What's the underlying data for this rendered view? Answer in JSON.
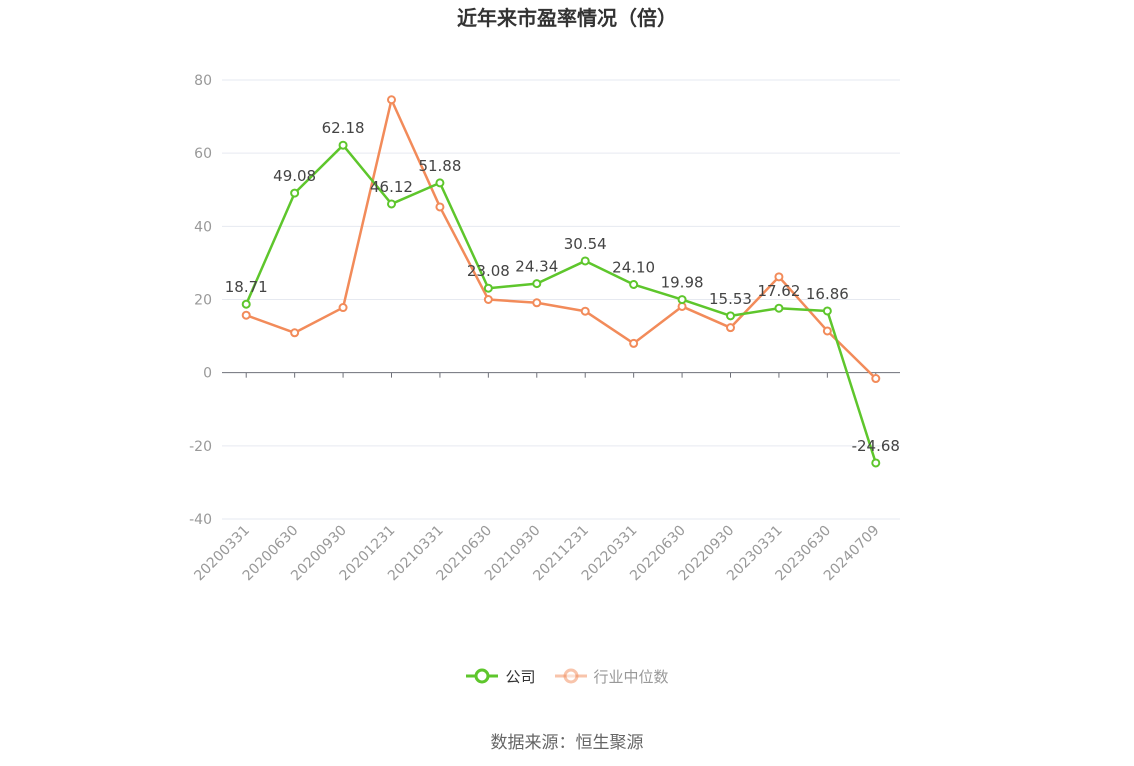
{
  "chart_data": {
    "type": "line",
    "title": "近年来市盈率情况（倍）",
    "categories": [
      "20200331",
      "20200630",
      "20200930",
      "20201231",
      "20210331",
      "20210630",
      "20210930",
      "20211231",
      "20220331",
      "20220630",
      "20220930",
      "20230331",
      "20230630",
      "20240709"
    ],
    "series": [
      {
        "name": "公司",
        "color": "#5ec62c",
        "values": [
          18.71,
          49.08,
          62.18,
          46.12,
          51.88,
          23.08,
          24.34,
          30.54,
          24.1,
          19.98,
          15.53,
          17.62,
          16.86,
          -24.68
        ],
        "labels": [
          "18.71",
          "49.08",
          "62.18",
          "46.12",
          "51.88",
          "23.08",
          "24.34",
          "30.54",
          "24.10",
          "19.98",
          "15.53",
          "17.62",
          "16.86",
          "-24.68"
        ]
      },
      {
        "name": "行业中位数",
        "color": "#f28b5a",
        "values": [
          15.7,
          10.9,
          17.8,
          74.6,
          45.3,
          20.0,
          19.1,
          16.8,
          8.0,
          18.1,
          12.3,
          26.2,
          11.4,
          -1.6
        ]
      }
    ],
    "ylim": [
      -40,
      80
    ],
    "yticks": [
      80,
      60,
      40,
      20,
      0,
      -20,
      -40
    ],
    "grid": true,
    "legend_position": "bottom-center"
  },
  "source": "数据来源：恒生聚源"
}
